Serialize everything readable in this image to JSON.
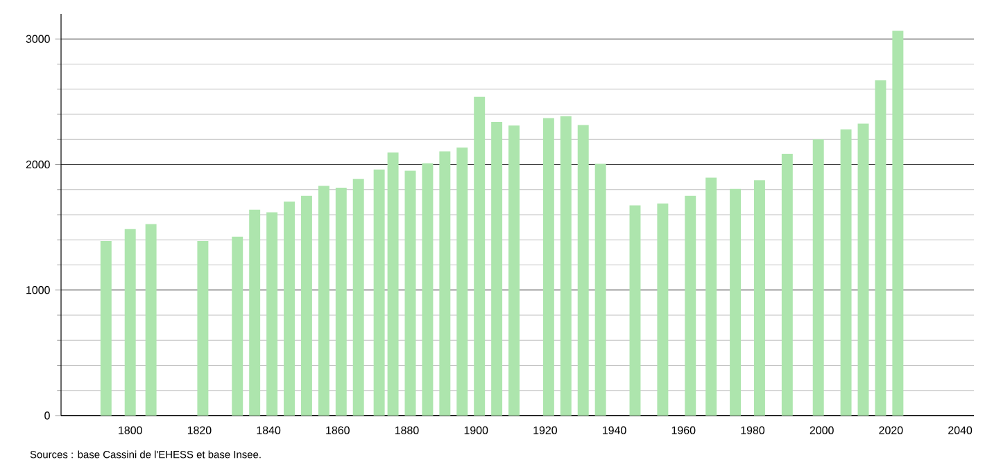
{
  "chart_data": {
    "type": "bar",
    "x": [
      1793,
      1800,
      1806,
      1821,
      1831,
      1836,
      1841,
      1846,
      1851,
      1856,
      1861,
      1866,
      1872,
      1876,
      1881,
      1886,
      1891,
      1896,
      1901,
      1906,
      1911,
      1921,
      1926,
      1931,
      1936,
      1946,
      1954,
      1962,
      1968,
      1975,
      1982,
      1990,
      1999,
      2007,
      2012,
      2017,
      2022
    ],
    "values": [
      1390,
      1485,
      1525,
      1390,
      1425,
      1640,
      1620,
      1705,
      1750,
      1830,
      1815,
      1885,
      1960,
      2095,
      1950,
      2010,
      2105,
      2135,
      2540,
      2340,
      2310,
      2370,
      2385,
      2315,
      2005,
      1675,
      1690,
      1750,
      1895,
      1805,
      1875,
      2085,
      2200,
      2280,
      2325,
      2670,
      3065
    ],
    "color": "#ade5ad",
    "xlim": [
      1780,
      2044
    ],
    "xticks": [
      1800,
      1820,
      1840,
      1860,
      1880,
      1900,
      1920,
      1940,
      1960,
      1980,
      2000,
      2020,
      2040
    ],
    "ylim": [
      0,
      3200
    ],
    "yticks": [
      0,
      1000,
      2000,
      3000
    ],
    "grid": "y",
    "annotations": [
      "Sources : base Cassini de l'EHESS et base Insee."
    ]
  }
}
